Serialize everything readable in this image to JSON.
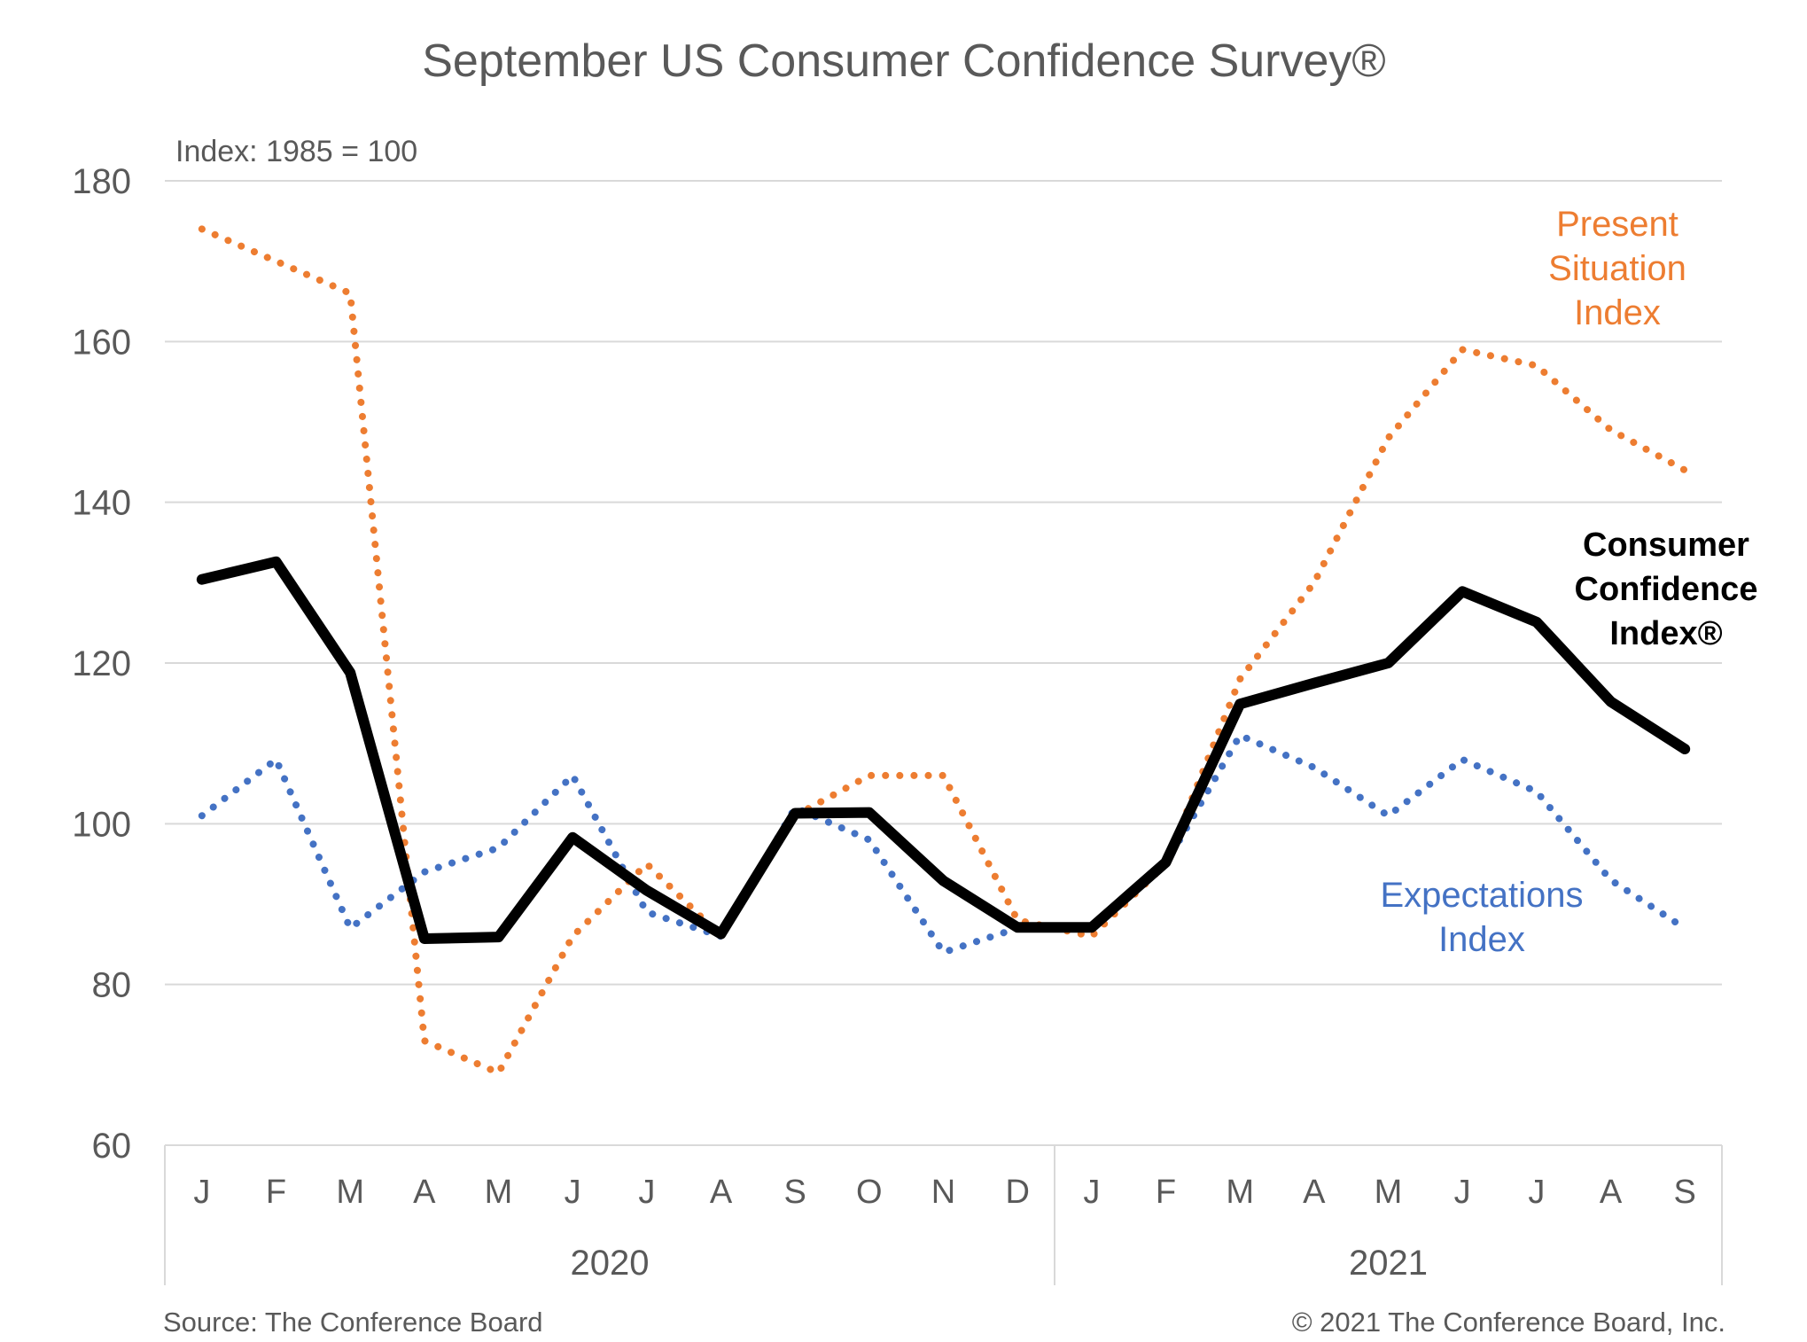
{
  "title": "September US Consumer Confidence Survey®",
  "index_note": "Index: 1985 = 100",
  "source": "Source: The Conference Board",
  "copyright": "© 2021 The Conference Board, Inc.",
  "colors": {
    "consumer_confidence": "#000000",
    "present_situation": "#ED7D31",
    "expectations": "#4472C4",
    "grid": "#d9d9d9",
    "text": "#595959"
  },
  "labels": {
    "present_situation": [
      "Present",
      "Situation",
      "Index"
    ],
    "consumer_confidence": [
      "Consumer",
      "Confidence",
      "Index®"
    ],
    "expectations": [
      "Expectations",
      "Index"
    ]
  },
  "chart_data": {
    "type": "line",
    "title": "September US Consumer Confidence Survey®",
    "ylabel": "Index: 1985 = 100",
    "ylim": [
      60,
      180
    ],
    "yticks": [
      60,
      80,
      100,
      120,
      140,
      160,
      180
    ],
    "grid": true,
    "legend": "none",
    "categories": [
      "J",
      "F",
      "M",
      "A",
      "M",
      "J",
      "J",
      "A",
      "S",
      "O",
      "N",
      "D",
      "J",
      "F",
      "M",
      "A",
      "M",
      "J",
      "J",
      "A",
      "S"
    ],
    "year_groups": [
      {
        "label": "2020",
        "count": 12
      },
      {
        "label": "2021",
        "count": 9
      }
    ],
    "series": [
      {
        "name": "Present Situation Index",
        "style": "dotted",
        "values": [
          174,
          170,
          166,
          73,
          69,
          86,
          95,
          86,
          101,
          106,
          106,
          88,
          86,
          95,
          118,
          130,
          148,
          159,
          157,
          149,
          144
        ]
      },
      {
        "name": "Expectations Index",
        "style": "dotted",
        "values": [
          101,
          108,
          87,
          94,
          97,
          106,
          89,
          86,
          102,
          98,
          84,
          87,
          87,
          95,
          111,
          107,
          101,
          108,
          104,
          93,
          87
        ]
      },
      {
        "name": "Consumer Confidence Index®",
        "style": "solid",
        "values": [
          130.4,
          132.6,
          118.8,
          85.7,
          85.9,
          98.3,
          91.7,
          86.3,
          101.3,
          101.4,
          92.9,
          87.1,
          87.1,
          95.2,
          114.9,
          117.5,
          120.0,
          128.9,
          125.1,
          115.2,
          109.3
        ]
      }
    ]
  }
}
